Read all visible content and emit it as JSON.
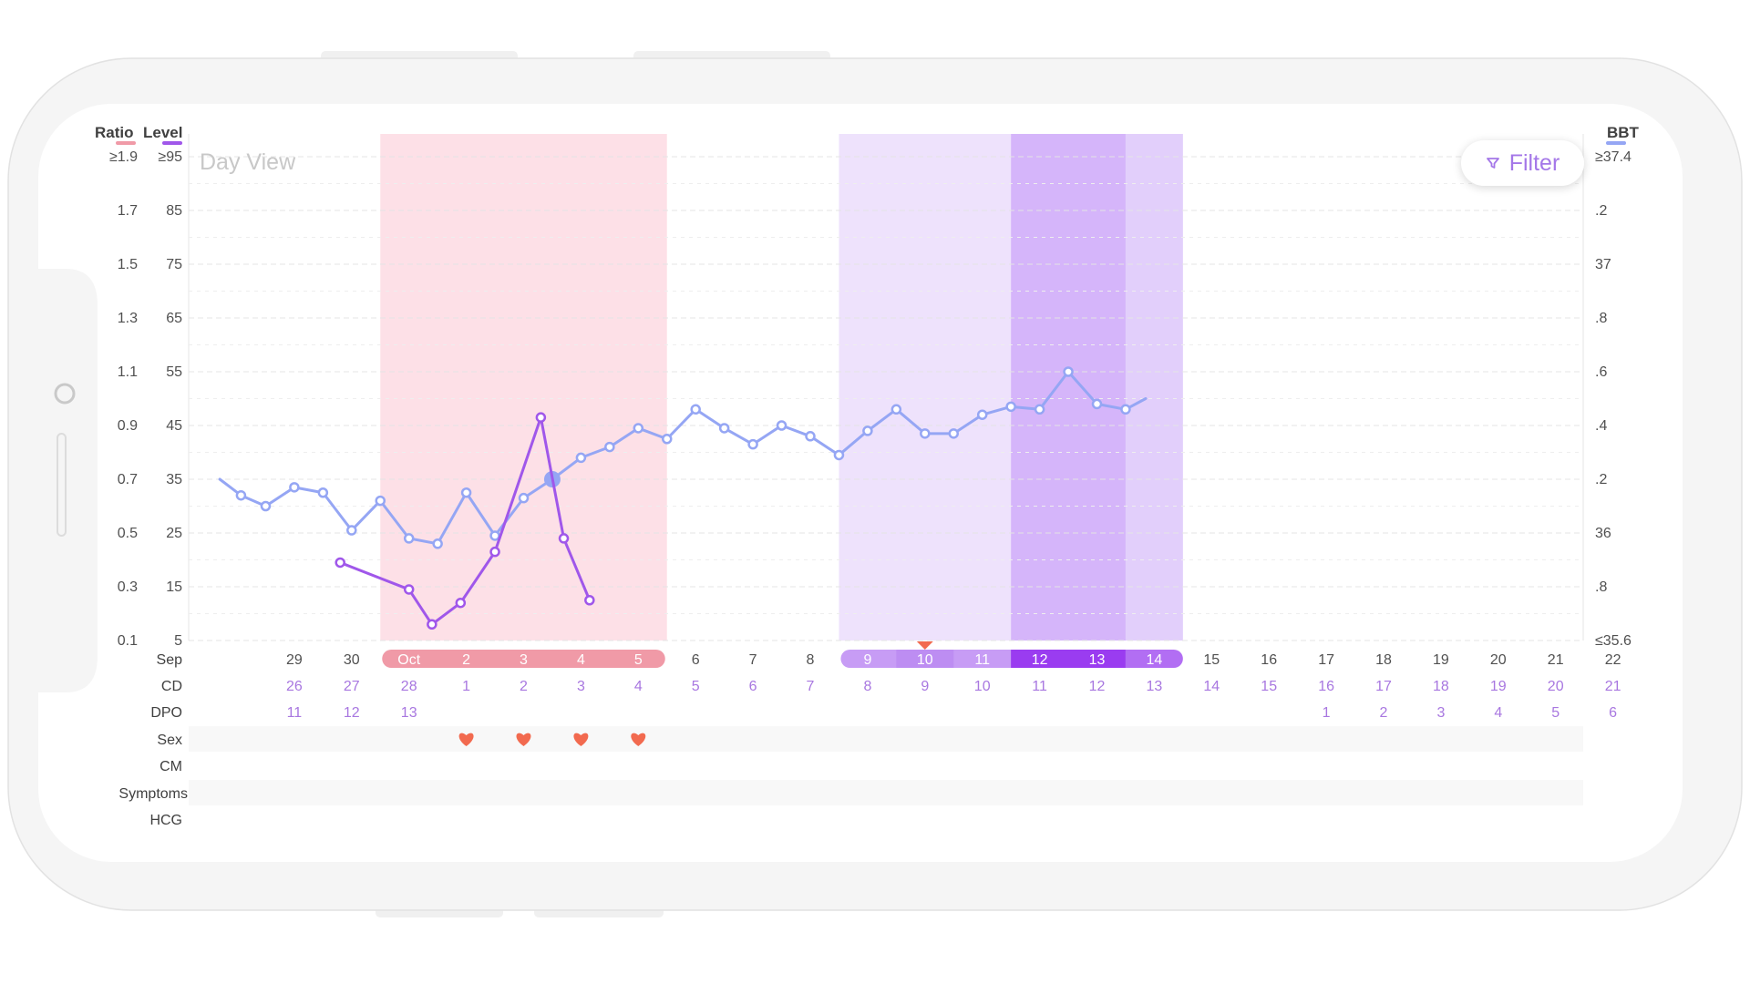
{
  "header": {
    "ratio_label": "Ratio",
    "level_label": "Level",
    "bbt_label": "BBT",
    "view_label": "Day View",
    "filter_label": "Filter"
  },
  "colors": {
    "ratio": "#f09aa7",
    "level": "#a057ea",
    "bbt": "#95a6f4",
    "period_band": "#fde0e7",
    "fertile_light": "#eee2fc",
    "fertile_mid": "#e2cffb",
    "fertile_dark": "#d5b5fa",
    "heart": "#f26a4f",
    "ovulation_marker": "#f26a4f"
  },
  "chart_data": {
    "type": "line",
    "left_axis_ratio_ticks": [
      "≥1.9",
      "1.7",
      "1.5",
      "1.3",
      "1.1",
      "0.9",
      "0.7",
      "0.5",
      "0.3",
      "0.1"
    ],
    "left_axis_level_ticks": [
      "≥95",
      "85",
      "75",
      "65",
      "55",
      "45",
      "35",
      "25",
      "15",
      "5"
    ],
    "right_axis_bbt_ticks": [
      "≥37.4",
      ".2",
      "37",
      ".8",
      ".6",
      ".4",
      ".2",
      "36",
      ".8",
      "≤35.6"
    ],
    "ylim_level": [
      5,
      95
    ],
    "ylim_bbt": [
      35.6,
      37.4
    ],
    "date_row_label": "Sep",
    "dates": [
      "29",
      "30",
      "Oct",
      "2",
      "3",
      "4",
      "5",
      "6",
      "7",
      "8",
      "9",
      "10",
      "11",
      "12",
      "13",
      "14",
      "15",
      "16",
      "17",
      "18",
      "19",
      "20",
      "21",
      "22"
    ],
    "cd_row_label": "CD",
    "cd": [
      "26",
      "27",
      "28",
      "1",
      "2",
      "3",
      "4",
      "5",
      "6",
      "7",
      "8",
      "9",
      "10",
      "11",
      "12",
      "13",
      "14",
      "15",
      "16",
      "17",
      "18",
      "19",
      "20",
      "21"
    ],
    "dpo_row_label": "DPO",
    "dpo": [
      "11",
      "12",
      "13",
      "",
      "",
      "",
      "",
      "",
      "",
      "",
      "",
      "",
      "",
      "",
      "",
      "",
      "",
      "",
      "1",
      "2",
      "3",
      "4",
      "5",
      "6"
    ],
    "sex_row_label": "Sex",
    "sex_days": [
      4,
      5,
      6,
      7
    ],
    "cm_row_label": "CM",
    "symptoms_row_label": "Symptoms",
    "hcg_row_label": "HCG",
    "period_days": [
      3,
      4,
      5,
      6,
      7
    ],
    "fertile_light_days": [
      11,
      12,
      13
    ],
    "fertile_dark_days": [
      14,
      15
    ],
    "fertile_mid_days": [
      16
    ],
    "ovulation_day": 12,
    "series": [
      {
        "key": "bbt",
        "points": [
          [
            -0.3,
            36.2
          ],
          [
            0.07,
            36.14
          ],
          [
            0.5,
            36.1
          ],
          [
            1,
            36.17
          ],
          [
            1.5,
            36.15
          ],
          [
            2,
            36.01
          ],
          [
            2.5,
            36.12
          ],
          [
            3,
            35.98
          ],
          [
            3.5,
            35.96
          ],
          [
            4,
            36.15
          ],
          [
            4.5,
            35.99
          ],
          [
            5,
            36.13
          ],
          [
            5.5,
            36.2
          ],
          [
            6,
            36.28
          ],
          [
            6.5,
            36.32
          ],
          [
            7,
            36.39
          ],
          [
            7.5,
            36.35
          ],
          [
            8,
            36.46
          ],
          [
            8.5,
            36.39
          ],
          [
            9,
            36.33
          ],
          [
            9.5,
            36.4
          ],
          [
            10,
            36.36
          ],
          [
            10.5,
            36.29
          ],
          [
            11,
            36.38
          ],
          [
            11.5,
            36.46
          ],
          [
            12,
            36.37
          ],
          [
            12.5,
            36.37
          ],
          [
            13,
            36.44
          ],
          [
            13.5,
            36.47
          ],
          [
            14,
            36.46
          ],
          [
            14.5,
            36.6
          ],
          [
            15,
            36.48
          ],
          [
            15.5,
            36.46
          ],
          [
            15.85,
            36.5
          ]
        ],
        "highlight_index": 12
      },
      {
        "key": "level",
        "points": [
          [
            1.8,
            19.5
          ],
          [
            3.0,
            14.5
          ],
          [
            3.4,
            8
          ],
          [
            3.9,
            12
          ],
          [
            4.5,
            21.5
          ],
          [
            5.3,
            46.5
          ],
          [
            5.7,
            24
          ],
          [
            6.15,
            12.5
          ]
        ]
      }
    ]
  }
}
